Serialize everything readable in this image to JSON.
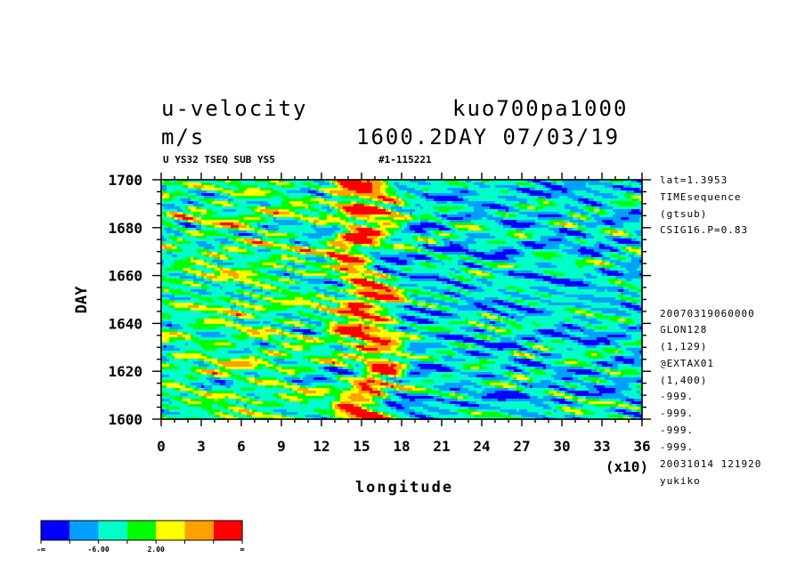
{
  "header": {
    "var_name": "u-velocity",
    "run_name": "kuo700pa1000",
    "units": "m/s",
    "time_info": "1600.2DAY 07/03/19",
    "sub_left": "U YS32 TSEQ SUB YS5",
    "sub_right": "#1-115221"
  },
  "info_panel": {
    "top": [
      "lat=1.3953",
      "TIMEsequence",
      "(gtsub)",
      "CSIG16.P=0.83"
    ],
    "bottom": [
      "20070319060000",
      "GLON128",
      "(1,129)",
      "@EXTAX01",
      "(1,400)",
      "-999.",
      "-999.",
      "-999.",
      "-999.",
      "20031014 121920",
      "yukiko"
    ]
  },
  "chart_data": {
    "type": "heatmap",
    "title": "u-velocity",
    "xlabel": "longitude",
    "ylabel": "DAY",
    "x_scale_note": "(x10)",
    "xlim": [
      0,
      36
    ],
    "ylim": [
      1600,
      1700
    ],
    "x_ticks": [
      "0",
      "3",
      "6",
      "9",
      "12",
      "15",
      "18",
      "21",
      "24",
      "27",
      "30",
      "33",
      "36"
    ],
    "y_ticks": [
      "1600",
      "1620",
      "1640",
      "1660",
      "1680",
      "1700"
    ],
    "colorbar": {
      "colors": [
        "#0000ff",
        "#00a0ff",
        "#00ffc8",
        "#00ff00",
        "#ffff00",
        "#ffa000",
        "#ff0000"
      ],
      "labels": [
        "-∞",
        "-6.00",
        "2.00",
        "∞"
      ]
    },
    "field_description_values": {
      "background_level_index": 2,
      "warm_band_longitude_x10": [
        13,
        18
      ]
    }
  }
}
